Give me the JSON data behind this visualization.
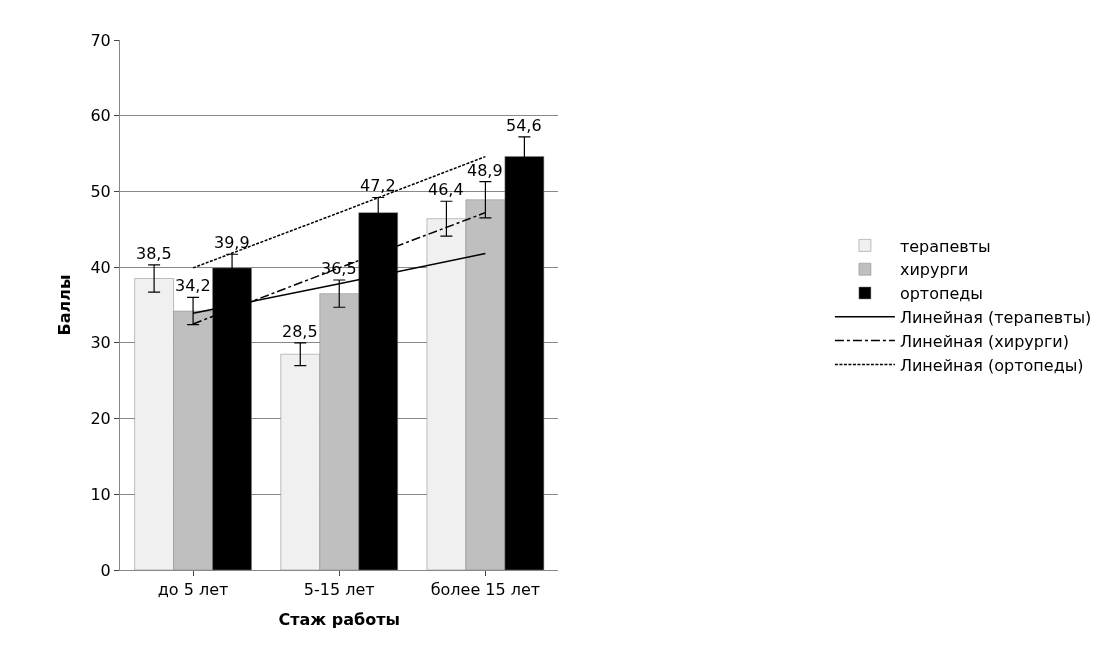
{
  "chart_data": {
    "type": "bar",
    "xlabel": "Стаж работы",
    "ylabel": "Баллы",
    "categories": [
      "до 5 лет",
      "5-15 лет",
      "более 15 лет"
    ],
    "series": [
      {
        "name": "терапевты",
        "color": "#f0f0f0",
        "values": [
          38.5,
          28.5,
          46.4
        ],
        "errors": [
          1.8,
          1.5,
          2.3
        ],
        "value_labels": [
          "38,5",
          "28,5",
          "46,4"
        ]
      },
      {
        "name": "хирурги",
        "color": "#bfbfbf",
        "values": [
          34.2,
          36.5,
          48.9
        ],
        "errors": [
          1.8,
          1.8,
          2.4
        ],
        "value_labels": [
          "34,2",
          "36,5",
          "48,9"
        ]
      },
      {
        "name": "ортопеды",
        "color": "#000000",
        "values": [
          39.9,
          47.2,
          54.6
        ],
        "errors": [
          1.8,
          2.0,
          2.6
        ],
        "value_labels": [
          "39,9",
          "47,2",
          "54,6"
        ]
      },
      {
        "name": "Линейная (терапевты)",
        "type": "line",
        "color": "#000000",
        "line_style": "solid",
        "values": [
          33.9,
          37.8,
          41.8
        ]
      },
      {
        "name": "Линейная (хирурги)",
        "type": "line",
        "color": "#000000",
        "line_style": "dashdot",
        "values": [
          32.5,
          39.9,
          47.2
        ]
      },
      {
        "name": "Линейная (ортопеды)",
        "type": "line",
        "color": "#000000",
        "line_style": "dotted",
        "values": [
          39.9,
          47.2,
          54.6
        ]
      }
    ],
    "ylim": [
      0,
      70
    ],
    "yticks": [
      0,
      10,
      20,
      30,
      40,
      50,
      60,
      70
    ],
    "grid": "y",
    "legend": "right",
    "marker": "none"
  }
}
